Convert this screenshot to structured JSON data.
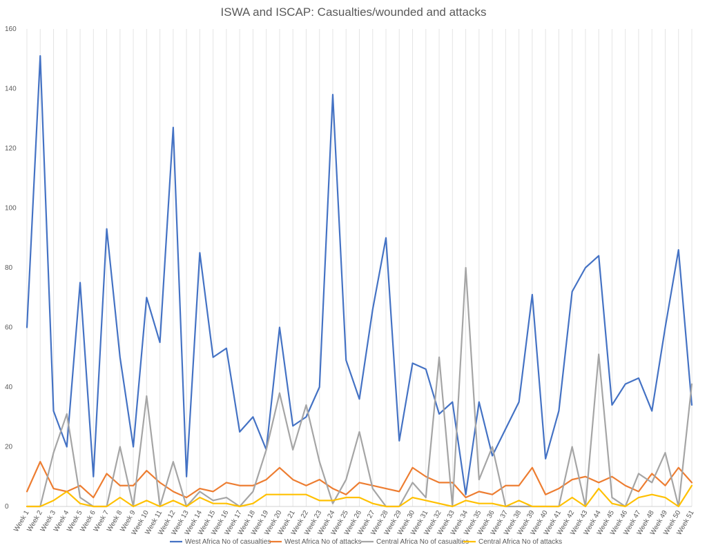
{
  "chart_data": {
    "type": "line",
    "title": "ISWA and ISCAP: Casualties/wounded and attacks",
    "xlabel": "",
    "ylabel": "",
    "ylim": [
      0,
      160
    ],
    "yticks": [
      "0",
      "20",
      "40",
      "60",
      "80",
      "100",
      "120",
      "140",
      "160"
    ],
    "grid": "vertical lines",
    "legend": "bottom",
    "categories": [
      "Week 1",
      "Week 2",
      "Week 3",
      "Week 4",
      "Week 5",
      "Week 6",
      "Week 7",
      "Week 8",
      "Week 9",
      "Week 10",
      "Week 11",
      "Week 12",
      "Week 13",
      "Week 14",
      "Week 15",
      "Week 16",
      "Week 17",
      "Week 18",
      "Week 19",
      "Week 20",
      "Week 21",
      "Week 22",
      "Week 23",
      "Week 24",
      "Week 25",
      "Week 26",
      "Week 27",
      "Week 28",
      "Week 29",
      "Week 30",
      "Week 31",
      "Week 32",
      "Week 33",
      "Week 34",
      "Week 35",
      "Week 36",
      "Week 37",
      "Week 38",
      "Week 39",
      "Week 40",
      "Week 41",
      "Week 42",
      "Week 43",
      "Week 44",
      "Week 45",
      "Week 46",
      "Week 47",
      "Week 48",
      "Week 49",
      "Week 50",
      "Week 51"
    ],
    "series": [
      {
        "name": "West Africa No of casualties",
        "color": "#4472C4",
        "values": [
          60,
          151,
          32,
          20,
          75,
          10,
          93,
          50,
          20,
          70,
          55,
          127,
          10,
          85,
          50,
          53,
          25,
          30,
          19,
          60,
          27,
          30,
          40,
          138,
          49,
          36,
          66,
          90,
          22,
          48,
          46,
          31,
          35,
          4,
          35,
          17,
          26,
          35,
          71,
          16,
          32,
          72,
          80,
          84,
          34,
          41,
          43,
          32,
          60,
          86,
          34
        ]
      },
      {
        "name": "West Africa No of attacks",
        "color": "#ED7D31",
        "values": [
          5,
          15,
          6,
          5,
          7,
          3,
          11,
          7,
          7,
          12,
          8,
          5,
          3,
          6,
          5,
          8,
          7,
          7,
          9,
          13,
          9,
          7,
          9,
          6,
          4,
          8,
          7,
          6,
          5,
          13,
          10,
          8,
          8,
          3,
          5,
          4,
          7,
          7,
          13,
          4,
          6,
          9,
          10,
          8,
          10,
          7,
          5,
          11,
          7,
          13,
          8
        ]
      },
      {
        "name": "Central Africa No of casualties",
        "color": "#A5A5A5",
        "values": [
          0,
          0,
          18,
          31,
          3,
          0,
          0,
          20,
          0,
          37,
          0,
          15,
          0,
          5,
          2,
          3,
          0,
          5,
          19,
          38,
          19,
          34,
          15,
          1,
          9,
          25,
          6,
          0,
          0,
          8,
          3,
          50,
          0,
          80,
          9,
          20,
          0,
          0,
          0,
          0,
          0,
          20,
          0,
          51,
          3,
          0,
          11,
          8,
          18,
          0,
          41
        ]
      },
      {
        "name": "Central Africa No of attacks",
        "color": "#FFC000",
        "values": [
          0,
          0,
          2,
          5,
          1,
          0,
          0,
          3,
          0,
          2,
          0,
          2,
          0,
          3,
          1,
          1,
          0,
          1,
          4,
          4,
          4,
          4,
          2,
          2,
          3,
          3,
          1,
          0,
          0,
          3,
          2,
          1,
          0,
          2,
          1,
          1,
          0,
          2,
          0,
          0,
          0,
          3,
          0,
          6,
          1,
          0,
          3,
          4,
          3,
          0,
          7
        ]
      }
    ]
  }
}
